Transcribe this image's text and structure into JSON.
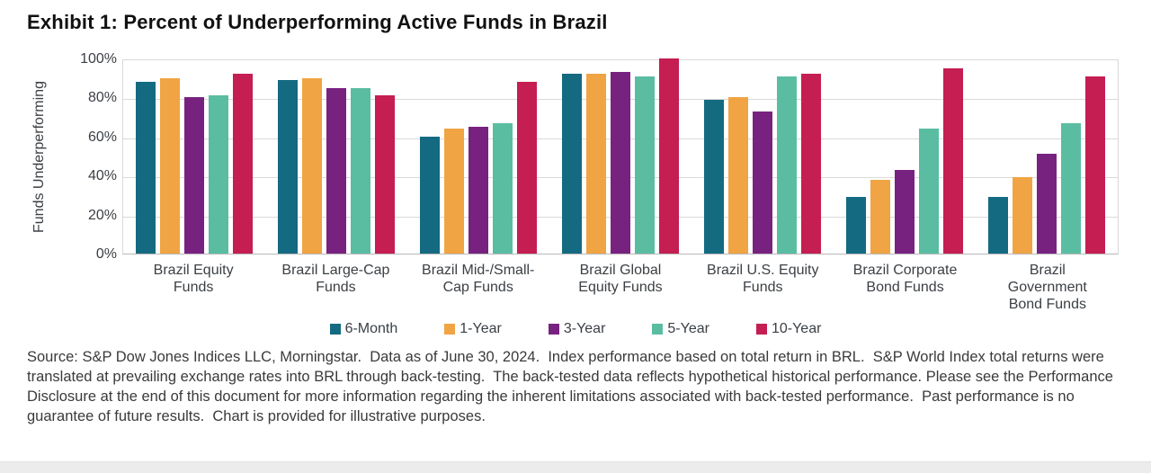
{
  "title": "Exhibit 1: Percent of Underperforming Active Funds in Brazil",
  "chart_data": {
    "type": "bar",
    "title": "Exhibit 1: Percent of Underperforming Active Funds in Brazil",
    "xlabel": "",
    "ylabel": "Funds Underperforming",
    "ylim": [
      0,
      100
    ],
    "yticks": [
      0,
      20,
      40,
      60,
      80,
      100
    ],
    "ytick_suffix": "%",
    "grid": true,
    "legend_position": "bottom",
    "categories": [
      "Brazil Equity Funds",
      "Brazil Large-Cap Funds",
      "Brazil Mid-/Small-Cap Funds",
      "Brazil Global Equity Funds",
      "Brazil U.S. Equity Funds",
      "Brazil Corporate Bond Funds",
      "Brazil Government Bond Funds"
    ],
    "category_labels": [
      "Brazil Equity\nFunds",
      "Brazil Large-Cap\nFunds",
      "Brazil Mid-/Small-\nCap Funds",
      "Brazil Global\nEquity Funds",
      "Brazil U.S. Equity\nFunds",
      "Brazil Corporate\nBond Funds",
      "Brazil\nGovernment\nBond Funds"
    ],
    "series": [
      {
        "name": "6-Month",
        "color": "#146a81",
        "values": [
          88,
          89,
          60,
          92,
          79,
          29,
          29
        ]
      },
      {
        "name": "1-Year",
        "color": "#f0a444",
        "values": [
          90,
          90,
          64,
          92,
          80,
          38,
          39
        ]
      },
      {
        "name": "3-Year",
        "color": "#782280",
        "values": [
          80,
          85,
          65,
          93,
          73,
          43,
          51
        ]
      },
      {
        "name": "5-Year",
        "color": "#5abda2",
        "values": [
          81,
          85,
          67,
          91,
          91,
          64,
          67
        ]
      },
      {
        "name": "10-Year",
        "color": "#c41e52",
        "values": [
          92,
          81,
          88,
          100,
          92,
          95,
          91
        ]
      }
    ]
  },
  "source_note": "Source: S&P Dow Jones Indices LLC, Morningstar.  Data as of June 30, 2024.  Index performance based on total return in BRL.  S&P World Index total returns were translated at prevailing exchange rates into BRL through back-testing.  The back-tested data reflects hypothetical historical performance. Please see the Performance Disclosure at the end of this document for more information regarding the inherent limitations associated with back-tested performance.  Past performance is no guarantee of future results.  Chart is provided for illustrative purposes."
}
